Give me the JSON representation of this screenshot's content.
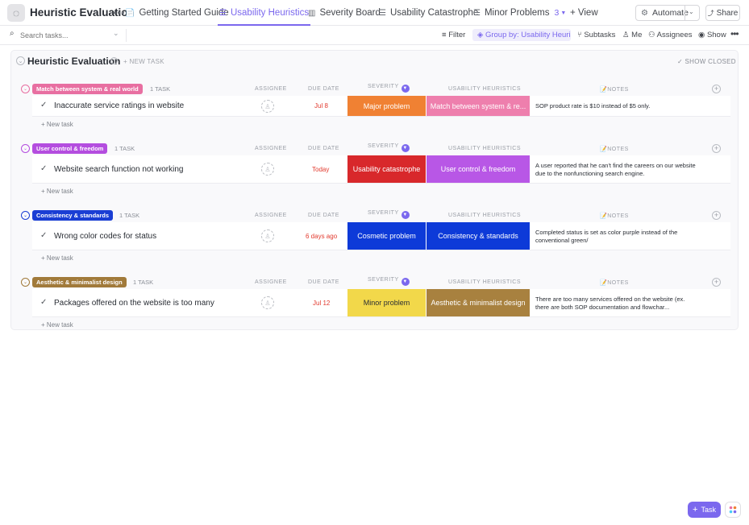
{
  "header": {
    "title": "Heuristic Evaluation",
    "more": "•••",
    "tabs": [
      {
        "label": "Getting Started Guide",
        "icon": "doc-icon"
      },
      {
        "label": "Usability Heuristics",
        "icon": "list-icon",
        "active": true
      },
      {
        "label": "Severity Board",
        "icon": "board-icon"
      },
      {
        "label": "Usability Catastrophe",
        "icon": "list-icon"
      },
      {
        "label": "Minor Problems",
        "icon": "list-icon",
        "badge": "3"
      }
    ],
    "add_view": "+ View",
    "automate": "Automate",
    "share": "Share"
  },
  "toolbar": {
    "search_placeholder": "Search tasks...",
    "filter": "Filter",
    "group_by": "Group by: Usability Heuris...",
    "subtasks": "Subtasks",
    "me": "Me",
    "assignees": "Assignees",
    "show": "Show"
  },
  "list": {
    "title": "Heuristic Evaluation",
    "new_task": "+ NEW TASK",
    "show_closed": "SHOW CLOSED"
  },
  "columns": {
    "assignee": "ASSIGNEE",
    "due_date": "DUE DATE",
    "severity": "SEVERITY",
    "heuristics": "USABILITY HEURISTICS",
    "notes": "📝NOTES"
  },
  "groups": [
    {
      "label": "Match between system & real world",
      "count": "1 TASK",
      "color": "#e86fa1",
      "task": {
        "name": "Inaccurate service ratings in website",
        "due": "Jul 8",
        "severity": "Major problem",
        "severity_color": "#f08133",
        "heuristic": "Match between system & re...",
        "heuristic_color": "#ee7fad",
        "notes": "SOP product rate is $10 instead of $5 only."
      },
      "new_task": "+ New task"
    },
    {
      "label": "User control & freedom",
      "count": "1 TASK",
      "color": "#b44ddf",
      "task": {
        "name": "Website search function not working",
        "due": "Today",
        "severity": "Usability catastrophe",
        "severity_color": "#d8282b",
        "heuristic": "User control & freedom",
        "heuristic_color": "#b857e6",
        "notes": "A user reported that he can't find the careers on our website due to the nonfunctioning search engine."
      },
      "new_task": "+ New task"
    },
    {
      "label": "Consistency & standards",
      "count": "1 TASK",
      "color": "#1a3ed4",
      "task": {
        "name": "Wrong color codes for status",
        "due": "6 days ago",
        "severity": "Cosmetic problem",
        "severity_color": "#0d3ad8",
        "heuristic": "Consistency & standards",
        "heuristic_color": "#0d3ad8",
        "notes": "Completed status is set as color purple instead of the conventional green/"
      },
      "new_task": "+ New task"
    },
    {
      "label": "Aesthetic & minimalist design",
      "count": "1 TASK",
      "color": "#a17a3a",
      "task": {
        "name": "Packages offered on the website is too many",
        "due": "Jul 12",
        "severity": "Minor problem",
        "severity_color": "#f2d84a",
        "heuristic": "Aesthetic & minimalist design",
        "heuristic_color": "#a8813f",
        "notes": "There are too many services offered on the website (ex. there are both SOP documentation and flowchar..."
      },
      "new_task": "+ New task"
    }
  ],
  "fab": {
    "label": "Task"
  }
}
